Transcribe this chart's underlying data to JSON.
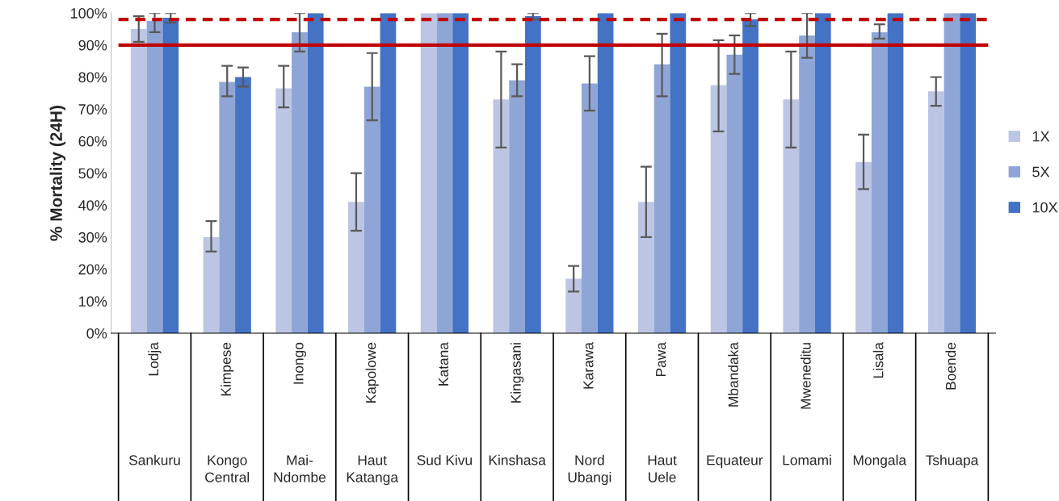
{
  "chart_data": {
    "type": "bar",
    "ylabel": "% Mortality (24H)",
    "categories": [
      "Lodja\nSankuru",
      "Kimpese\nKongo\nCentral",
      "Inongo\nMai-\nNdombe",
      "Kapolowe\nHaut\nKatanga",
      "Katana\nSud Kivu",
      "Kingasani\nKinshasa",
      "Karawa\nNord\nUbangi",
      "Pawa\nHaut\nUele",
      "Mbandaka\nEquateur",
      "Mweneditu\nLomami",
      "Lisala\nMongala",
      "Boende\nTshuapa"
    ],
    "series": [
      {
        "name": "1X",
        "color": "#bcc5e3",
        "values": [
          95,
          30,
          76.5,
          41,
          100,
          73,
          17,
          41,
          77.5,
          73,
          53.5,
          75.5
        ],
        "errors": [
          [
            91,
            99
          ],
          [
            25.5,
            35
          ],
          [
            70.5,
            83.5
          ],
          [
            32,
            50
          ],
          null,
          [
            58,
            88
          ],
          [
            13,
            21
          ],
          [
            30,
            52
          ],
          [
            63,
            91.5
          ],
          [
            58,
            88
          ],
          [
            45,
            62
          ],
          [
            71,
            80
          ]
        ]
      },
      {
        "name": "5X",
        "color": "#8fa5d6",
        "values": [
          97.5,
          78.5,
          94,
          77,
          100,
          79,
          78,
          84,
          87,
          93,
          94,
          100
        ],
        "errors": [
          [
            94,
            100
          ],
          [
            74,
            83.5
          ],
          [
            88,
            100
          ],
          [
            66.5,
            87.5
          ],
          null,
          [
            74,
            84
          ],
          [
            69.5,
            86.5
          ],
          [
            74,
            93.5
          ],
          [
            81,
            93
          ],
          [
            86,
            100
          ],
          [
            92,
            96.5
          ],
          null
        ]
      },
      {
        "name": "10X",
        "color": "#4472c4",
        "values": [
          98.5,
          80,
          100,
          100,
          100,
          99,
          100,
          100,
          98,
          100,
          100,
          100
        ],
        "errors": [
          [
            97,
            100
          ],
          [
            77,
            83
          ],
          null,
          null,
          null,
          [
            98,
            100
          ],
          null,
          null,
          [
            96,
            100
          ],
          null,
          null,
          null
        ]
      }
    ],
    "ylim": [
      0,
      100
    ],
    "yticks": [
      {
        "value": 0,
        "label": "0%"
      },
      {
        "value": 10,
        "label": "10%"
      },
      {
        "value": 20,
        "label": "20%"
      },
      {
        "value": 30,
        "label": "30%"
      },
      {
        "value": 40,
        "label": "40%"
      },
      {
        "value": 50,
        "label": "50%"
      },
      {
        "value": 60,
        "label": "60%"
      },
      {
        "value": 70,
        "label": "70%"
      },
      {
        "value": 80,
        "label": "80%"
      },
      {
        "value": 90,
        "label": "90%"
      },
      {
        "value": 100,
        "label": "100%"
      }
    ],
    "ref_lines": [
      {
        "axis": "y",
        "value": 98,
        "color": "#c00000",
        "line_style": "dashed"
      },
      {
        "axis": "y",
        "value": 90,
        "color": "#c00000",
        "line_style": "solid"
      }
    ],
    "grid": false,
    "legend": "right"
  }
}
